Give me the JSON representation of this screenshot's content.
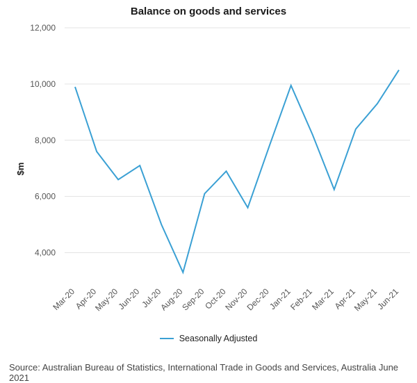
{
  "chart_data": {
    "type": "line",
    "title": "Balance on goods and services",
    "ylabel": "$m",
    "xlabel": "",
    "categories": [
      "Mar-20",
      "Apr-20",
      "May-20",
      "Jun-20",
      "Jul-20",
      "Aug-20",
      "Sep-20",
      "Oct-20",
      "Nov-20",
      "Dec-20",
      "Jan-21",
      "Feb-21",
      "Mar-21",
      "Apr-21",
      "May-21",
      "Jun-21"
    ],
    "series": [
      {
        "name": "Seasonally Adjusted",
        "color": "#3aa0d4",
        "values": [
          9900,
          7600,
          6600,
          7100,
          5000,
          3300,
          6100,
          6900,
          5600,
          7800,
          9950,
          8200,
          6250,
          8400,
          9300,
          10500
        ]
      }
    ],
    "ylim": [
      3000,
      12000
    ],
    "yticks": [
      4000,
      6000,
      8000,
      10000,
      12000
    ],
    "ytick_labels": [
      "4,000",
      "6,000",
      "8,000",
      "10,000",
      "12,000"
    ],
    "grid": true,
    "legend_position": "bottom"
  },
  "source": "Source: Australian Bureau of Statistics, International Trade in Goods and Services, Australia June 2021"
}
